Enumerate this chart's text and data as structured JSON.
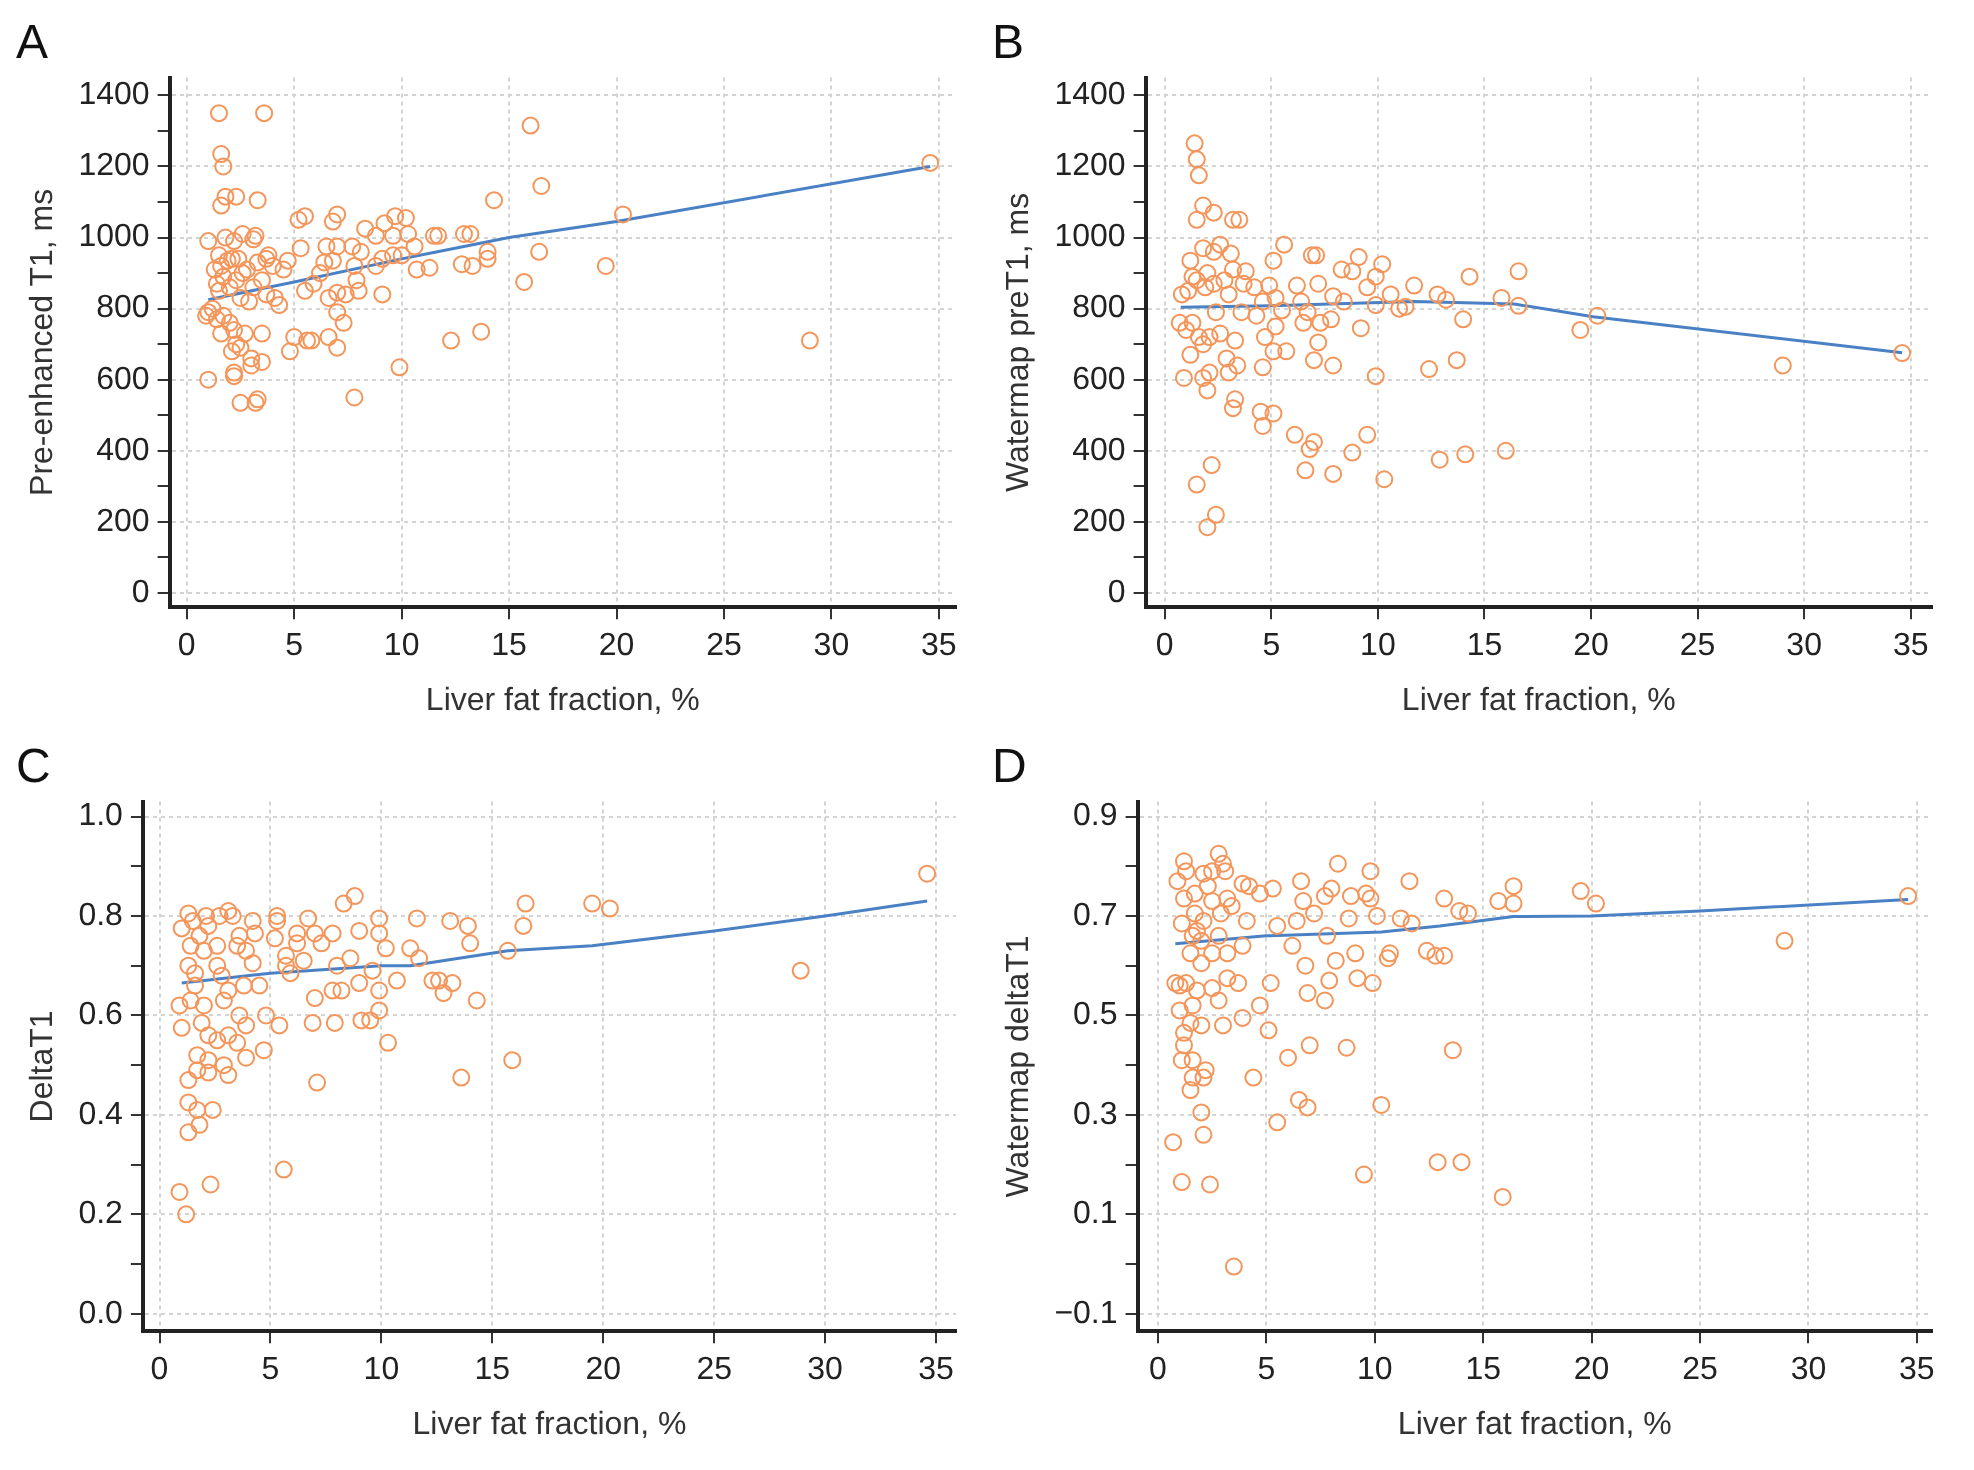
{
  "chart_data": [
    {
      "type": "scatter",
      "title": "A",
      "xlabel": "Liver fat fraction, %",
      "ylabel": "Pre-enhanced T1, ms",
      "xlim": [
        -0.8,
        35.8
      ],
      "xticks": [
        0,
        5,
        10,
        15,
        20,
        25,
        30,
        35
      ],
      "ylim": [
        -40,
        1450
      ],
      "yticks": [
        0,
        {
          "value": 100,
          "label": null
        },
        200,
        {
          "value": 300,
          "label": null
        },
        400,
        {
          "value": 500,
          "label": null
        },
        600,
        {
          "value": 700,
          "label": null
        },
        800,
        {
          "value": 900,
          "label": null
        },
        1000,
        {
          "value": 1100,
          "label": null
        },
        1200,
        {
          "value": 1300,
          "label": null
        },
        1400
      ],
      "grid": true,
      "legend": false,
      "marker": "circle",
      "series": [
        {
          "type": "scatter",
          "color": "#f4955a",
          "x": [
            1,
            1.8,
            2.2,
            2.6,
            3.2,
            3.1,
            0.9,
            1,
            1.2,
            1.4,
            1.7,
            1.5,
            1.3,
            1.6,
            1.9,
            2.1,
            2.4,
            1.4,
            1.5,
            1.7,
            2,
            2.3,
            2.6,
            2.8,
            3.3,
            3.7,
            3.8,
            4,
            4.5,
            4.7,
            2.5,
            2.9,
            3.1,
            3.5,
            3.7,
            4.1,
            4.3,
            1.6,
            2,
            2.2,
            2.3,
            2.7,
            3.5,
            2.5,
            2.1,
            3,
            3.5,
            3,
            2.2,
            2.2,
            1,
            2.5,
            3.3,
            3.2,
            4.8,
            5,
            5.6,
            5.8,
            6.6,
            7,
            7.3,
            7,
            6.6,
            7,
            5.5,
            5.9,
            6.2,
            6.4,
            6.8,
            6.5,
            7,
            7.7,
            8.1,
            7.8,
            8.8,
            9.1,
            9.6,
            10,
            10.6,
            9.1,
            8,
            7.9,
            7.4,
            7.8,
            9.9,
            5.3,
            5.2,
            5.5,
            6.8,
            7,
            8.3,
            8.8,
            9.2,
            9.6,
            9.7,
            10.2,
            10.3,
            11.5,
            11.7,
            12.9,
            13.2,
            10.7,
            11.3,
            12.8,
            13.3,
            14,
            14,
            12.3,
            13.7,
            15.7,
            16.4,
            19.5,
            29,
            14.3,
            16.5,
            20.3,
            16,
            34.6,
            1.5,
            3.6,
            1.6,
            1.7,
            1.8,
            2.3,
            3.3,
            1.6
          ],
          "values": [
            990,
            1000,
            990,
            1010,
            1005,
            995,
            780,
            790,
            800,
            770,
            780,
            950,
            910,
            920,
            935,
            940,
            940,
            870,
            850,
            890,
            860,
            880,
            900,
            910,
            930,
            940,
            950,
            920,
            910,
            935,
            830,
            820,
            860,
            880,
            840,
            830,
            810,
            730,
            760,
            740,
            700,
            730,
            730,
            690,
            680,
            660,
            650,
            640,
            620,
            610,
            600,
            535,
            545,
            535,
            680,
            720,
            710,
            710,
            720,
            690,
            760,
            790,
            830,
            845,
            850,
            870,
            900,
            930,
            935,
            975,
            975,
            975,
            960,
            920,
            920,
            940,
            950,
            950,
            975,
            840,
            850,
            880,
            840,
            550,
            635,
            970,
            1050,
            1060,
            1045,
            1065,
            1025,
            1005,
            1040,
            1005,
            1060,
            1055,
            1010,
            1005,
            1005,
            1010,
            1010,
            910,
            915,
            925,
            920,
            960,
            940,
            710,
            735,
            875,
            960,
            920,
            710,
            1105,
            1145,
            1065,
            1315,
            1210,
            1350,
            1350,
            1235,
            1200,
            1115,
            1115,
            1105,
            1090
          ]
        },
        {
          "type": "line",
          "color": "#4a80c4",
          "marker": "none",
          "x": [
            1,
            5,
            10,
            15,
            20,
            34.6
          ],
          "values": [
            825,
            875,
            940,
            1000,
            1045,
            1200
          ]
        }
      ]
    },
    {
      "type": "scatter",
      "title": "B",
      "xlabel": "Liver fat fraction, %",
      "ylabel": "Watermap preT1, ms",
      "xlim": [
        -0.9,
        36
      ],
      "xticks": [
        0,
        5,
        10,
        15,
        20,
        25,
        30,
        35
      ],
      "ylim": [
        -40,
        1450
      ],
      "yticks": [
        0,
        {
          "value": 100,
          "label": null
        },
        200,
        {
          "value": 300,
          "label": null
        },
        400,
        {
          "value": 500,
          "label": null
        },
        600,
        {
          "value": 700,
          "label": null
        },
        800,
        {
          "value": 900,
          "label": null
        },
        1000,
        {
          "value": 1100,
          "label": null
        },
        1200,
        {
          "value": 1300,
          "label": null
        },
        1400
      ],
      "grid": true,
      "legend": false,
      "marker": "circle",
      "series": [
        {
          "type": "scatter",
          "color": "#f4955a",
          "x": [
            1.4,
            1.5,
            1.6,
            1.8,
            2.3,
            1.5,
            3.2,
            3.5,
            1.8,
            2.6,
            2.3,
            3.1,
            5.6,
            5.1,
            6.9,
            7.1,
            9.1,
            10.2,
            8.3,
            8.8,
            9.9,
            14.3,
            16.6,
            1.2,
            1.3,
            1.5,
            2,
            2.8,
            3.8,
            3.2,
            0.8,
            1.1,
            1.9,
            2.3,
            3,
            3.7,
            4.2,
            4.9,
            6.2,
            7.2,
            7.9,
            9.5,
            10.6,
            11.7,
            12.8,
            13.2,
            15.8,
            16.6,
            8.4,
            9.9,
            11,
            11.3,
            6.4,
            5.2,
            4.6,
            3.6,
            4.3,
            5.5,
            6.7,
            5.2,
            4.7,
            6.5,
            7.3,
            7.8,
            0.7,
            1,
            1.3,
            1.6,
            2.1,
            2.6,
            3.3,
            2.4,
            1.8,
            1.2,
            0.9,
            1.8,
            2.1,
            2,
            2.9,
            3,
            3.4,
            4.6,
            5.1,
            5.7,
            7,
            7.2,
            7.9,
            9.2,
            9.9,
            12.4,
            13.7,
            14,
            19.5,
            20.3,
            29,
            34.6,
            3.3,
            3.2,
            4.5,
            5.1,
            4.6,
            6.1,
            6.8,
            7,
            8.8,
            9.5,
            6.6,
            7.9,
            10.3,
            12.9,
            14.1,
            16,
            2.2,
            1.5,
            2.4,
            2
          ],
          "values": [
            1265,
            1220,
            1175,
            1090,
            1070,
            1050,
            1050,
            1050,
            970,
            980,
            960,
            955,
            980,
            935,
            950,
            950,
            945,
            925,
            910,
            905,
            890,
            890,
            905,
            935,
            890,
            880,
            900,
            880,
            905,
            910,
            840,
            850,
            860,
            870,
            840,
            870,
            860,
            865,
            865,
            870,
            835,
            860,
            840,
            865,
            840,
            825,
            830,
            808,
            820,
            810,
            800,
            805,
            820,
            830,
            820,
            790,
            780,
            795,
            790,
            750,
            720,
            760,
            760,
            770,
            760,
            740,
            760,
            720,
            720,
            730,
            710,
            790,
            700,
            670,
            605,
            605,
            620,
            570,
            660,
            620,
            640,
            635,
            680,
            680,
            655,
            705,
            640,
            745,
            610,
            630,
            655,
            770,
            740,
            780,
            640,
            675,
            545,
            520,
            510,
            505,
            470,
            445,
            405,
            425,
            395,
            445,
            345,
            335,
            320,
            375,
            390,
            400,
            360,
            305,
            220,
            185
          ]
        },
        {
          "type": "line",
          "color": "#4a80c4",
          "marker": "none",
          "x": [
            0.75,
            5,
            11.7,
            16.4,
            20.1,
            34.6
          ],
          "values": [
            804,
            808,
            820,
            813,
            777,
            676
          ]
        }
      ]
    },
    {
      "type": "scatter",
      "title": "C",
      "xlabel": "Liver fat fraction, %",
      "ylabel": "DeltaT1",
      "xlim": [
        -0.75,
        35.9
      ],
      "xticks": [
        0,
        5,
        10,
        15,
        20,
        25,
        30,
        35
      ],
      "ylim": [
        -0.035,
        1.03
      ],
      "yticks": [
        {
          "value": 0,
          "label": "0.0"
        },
        {
          "value": 0.1,
          "label": null
        },
        0.2,
        {
          "value": 0.3,
          "label": null
        },
        0.4,
        {
          "value": 0.5,
          "label": null
        },
        0.6,
        {
          "value": 0.7,
          "label": null
        },
        0.8,
        {
          "value": 0.9,
          "label": null
        },
        {
          "value": 1,
          "label": "1.0"
        }
      ],
      "grid": true,
      "legend": false,
      "marker": "circle",
      "series": [
        {
          "type": "scatter",
          "color": "#f4955a",
          "x": [
            34.6,
            28.9,
            19.5,
            20.3,
            16.5,
            16.4,
            15.7,
            15.9,
            13.6,
            14.3,
            13.9,
            14,
            13.1,
            13.2,
            12.8,
            12.6,
            12.3,
            11.6,
            11.3,
            11.7,
            10.7,
            10.3,
            10.2,
            9.9,
            9.9,
            9.6,
            9.9,
            9.9,
            9.5,
            9.1,
            9,
            9,
            8.6,
            8.8,
            8.3,
            8.2,
            7.9,
            8,
            7.8,
            7.8,
            7.3,
            7,
            7,
            6.9,
            7.1,
            6.7,
            6.5,
            6.2,
            6.2,
            5.9,
            5.7,
            5.7,
            5.6,
            5.4,
            5.3,
            5.3,
            5.2,
            4.8,
            4.7,
            4.5,
            4.3,
            4.2,
            4.2,
            3.9,
            3.9,
            3.8,
            3.9,
            3.6,
            3.5,
            3.6,
            3.5,
            3.3,
            3.1,
            3.1,
            3.1,
            3.1,
            2.9,
            2.9,
            2.8,
            2.7,
            2.6,
            2.6,
            2.6,
            2.4,
            2.3,
            2.2,
            2.2,
            2.2,
            2.1,
            2.2,
            2,
            2,
            1.9,
            1.8,
            1.8,
            1.7,
            1.7,
            1.7,
            1.6,
            1.6,
            1.5,
            1.4,
            1.4,
            1.3,
            1.3,
            1.3,
            1.3,
            1.3,
            1.2,
            1,
            1,
            0.9,
            0.9
          ],
          "values": [
            0.885,
            0.69,
            0.825,
            0.815,
            0.825,
            0.78,
            0.73,
            0.51,
            0.475,
            0.63,
            0.78,
            0.745,
            0.79,
            0.665,
            0.645,
            0.67,
            0.67,
            0.795,
            0.735,
            0.715,
            0.67,
            0.545,
            0.735,
            0.795,
            0.765,
            0.69,
            0.65,
            0.61,
            0.59,
            0.59,
            0.665,
            0.77,
            0.715,
            0.84,
            0.825,
            0.65,
            0.585,
            0.7,
            0.765,
            0.65,
            0.745,
            0.765,
            0.635,
            0.585,
            0.465,
            0.795,
            0.71,
            0.765,
            0.745,
            0.685,
            0.72,
            0.7,
            0.29,
            0.58,
            0.79,
            0.8,
            0.755,
            0.6,
            0.53,
            0.66,
            0.765,
            0.79,
            0.705,
            0.73,
            0.515,
            0.66,
            0.58,
            0.6,
            0.545,
            0.76,
            0.74,
            0.8,
            0.81,
            0.65,
            0.48,
            0.56,
            0.5,
            0.63,
            0.68,
            0.8,
            0.74,
            0.7,
            0.55,
            0.41,
            0.26,
            0.485,
            0.56,
            0.78,
            0.8,
            0.51,
            0.62,
            0.73,
            0.585,
            0.76,
            0.38,
            0.52,
            0.49,
            0.41,
            0.685,
            0.66,
            0.79,
            0.74,
            0.63,
            0.805,
            0.7,
            0.47,
            0.425,
            0.365,
            0.2,
            0.575,
            0.775,
            0.62,
            0.245
          ]
        },
        {
          "type": "line",
          "color": "#4a80c4",
          "marker": "none",
          "x": [
            1,
            5,
            10,
            11.3,
            15.7,
            19.5,
            25,
            30,
            34.6
          ],
          "values": [
            0.665,
            0.685,
            0.7,
            0.7,
            0.73,
            0.74,
            0.77,
            0.8,
            0.83
          ]
        }
      ]
    },
    {
      "type": "scatter",
      "title": "D",
      "xlabel": "Liver fat fraction, %",
      "ylabel": "Watermap deltaT1",
      "xlim": [
        -0.94,
        35.7
      ],
      "xticks": [
        0,
        5,
        10,
        15,
        20,
        25,
        30,
        35
      ],
      "ylim": [
        -0.135,
        0.93
      ],
      "yticks": [
        {
          "value": -0.1,
          "label": "−0.1"
        },
        {
          "value": 0,
          "label": null
        },
        0.1,
        {
          "value": 0.2,
          "label": null
        },
        0.3,
        {
          "value": 0.4,
          "label": null
        },
        0.5,
        {
          "value": 0.6,
          "label": null
        },
        0.7,
        {
          "value": 0.8,
          "label": null
        },
        0.9
      ],
      "grid": true,
      "legend": false,
      "marker": "circle",
      "series": [
        {
          "type": "scatter",
          "color": "#f4955a",
          "x": [
            34.6,
            28.9,
            19.5,
            20.2,
            16.4,
            16.4,
            15.7,
            15.9,
            14,
            12.9,
            13.6,
            13.2,
            12.8,
            12.4,
            14.3,
            13.9,
            13.2,
            11.6,
            11.2,
            11.7,
            10.7,
            10.6,
            10.3,
            10.1,
            9.8,
            9.6,
            9.8,
            8.3,
            8.9,
            8.8,
            9.1,
            9.2,
            9.9,
            9.5,
            8.7,
            8,
            7.7,
            7.8,
            8.2,
            7.7,
            7.9,
            7,
            6.9,
            6.9,
            6.5,
            6.8,
            7.2,
            6.6,
            6.7,
            6.4,
            6.2,
            6,
            5.5,
            5.5,
            5.2,
            5.1,
            4.7,
            4.4,
            5.3,
            4.7,
            4.2,
            3.9,
            4.1,
            3.9,
            3.9,
            3.7,
            3.5,
            3.4,
            3.2,
            3.1,
            2.8,
            3,
            2.5,
            2.8,
            3.2,
            3.2,
            3,
            2.8,
            2.5,
            2.4,
            2.2,
            2.1,
            2.1,
            2,
            2,
            1.8,
            2,
            2.1,
            2.3,
            2.1,
            1.7,
            1.6,
            1.5,
            1.6,
            1.5,
            1.6,
            1.6,
            1.5,
            1.2,
            1.2,
            1.1,
            1,
            1.1,
            0.7,
            0.8,
            1,
            1.3,
            1.1,
            1.2,
            0.9,
            1.2,
            1.3,
            1.7,
            2,
            2.5,
            2.9,
            2.5,
            1.8
          ],
          "values": [
            0.74,
            0.65,
            0.75,
            0.725,
            0.76,
            0.725,
            0.73,
            0.135,
            0.205,
            0.205,
            0.43,
            0.62,
            0.62,
            0.63,
            0.705,
            0.71,
            0.735,
            0.77,
            0.695,
            0.685,
            0.625,
            0.615,
            0.32,
            0.7,
            0.735,
            0.745,
            0.79,
            0.805,
            0.74,
            0.695,
            0.625,
            0.575,
            0.565,
            0.18,
            0.435,
            0.755,
            0.74,
            0.66,
            0.61,
            0.53,
            0.57,
            0.44,
            0.545,
            0.315,
            0.33,
            0.6,
            0.705,
            0.77,
            0.73,
            0.69,
            0.64,
            0.415,
            0.285,
            0.68,
            0.565,
            0.47,
            0.52,
            0.375,
            0.755,
            0.745,
            0.76,
            0.765,
            0.69,
            0.64,
            0.495,
            0.565,
            -0.005,
            0.72,
            0.735,
            0.79,
            0.825,
            0.805,
            0.73,
            0.66,
            0.625,
            0.575,
            0.48,
            0.53,
            0.555,
            0.16,
            0.39,
            0.375,
            0.26,
            0.305,
            0.48,
            0.55,
            0.605,
            0.69,
            0.76,
            0.785,
            0.745,
            0.66,
            0.625,
            0.52,
            0.485,
            0.41,
            0.375,
            0.35,
            0.465,
            0.44,
            0.41,
            0.51,
            0.165,
            0.245,
            0.565,
            0.56,
            0.565,
            0.685,
            0.735,
            0.77,
            0.81,
            0.79,
            0.705,
            0.65,
            0.625,
            0.705,
            0.79,
            0.67
          ]
        },
        {
          "type": "line",
          "color": "#4a80c4",
          "marker": "none",
          "x": [
            0.8,
            5,
            10.3,
            13,
            16.4,
            20,
            25,
            34.6
          ],
          "values": [
            0.644,
            0.66,
            0.668,
            0.68,
            0.699,
            0.7,
            0.71,
            0.733
          ]
        }
      ]
    }
  ]
}
